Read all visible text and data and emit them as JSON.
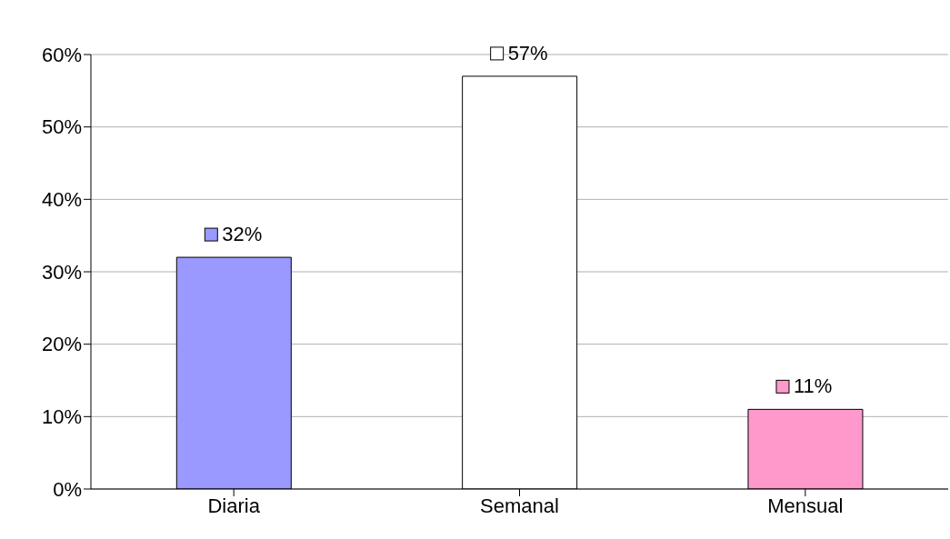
{
  "chart_data": {
    "type": "bar",
    "categories": [
      "Diaria",
      "Semanal",
      "Mensual"
    ],
    "values": [
      32,
      57,
      11
    ],
    "colors": [
      "#9999ff",
      "#ffffff",
      "#ff99cc"
    ],
    "value_labels": [
      "32%",
      "57%",
      "11%"
    ],
    "ylim": [
      0,
      60
    ],
    "yticks": [
      {
        "value": 0,
        "label": "0%"
      },
      {
        "value": 10,
        "label": "10%"
      },
      {
        "value": 20,
        "label": "20%"
      },
      {
        "value": 30,
        "label": "30%"
      },
      {
        "value": 40,
        "label": "40%"
      },
      {
        "value": 50,
        "label": "50%"
      },
      {
        "value": 60,
        "label": "60%"
      }
    ],
    "grid": "y"
  }
}
